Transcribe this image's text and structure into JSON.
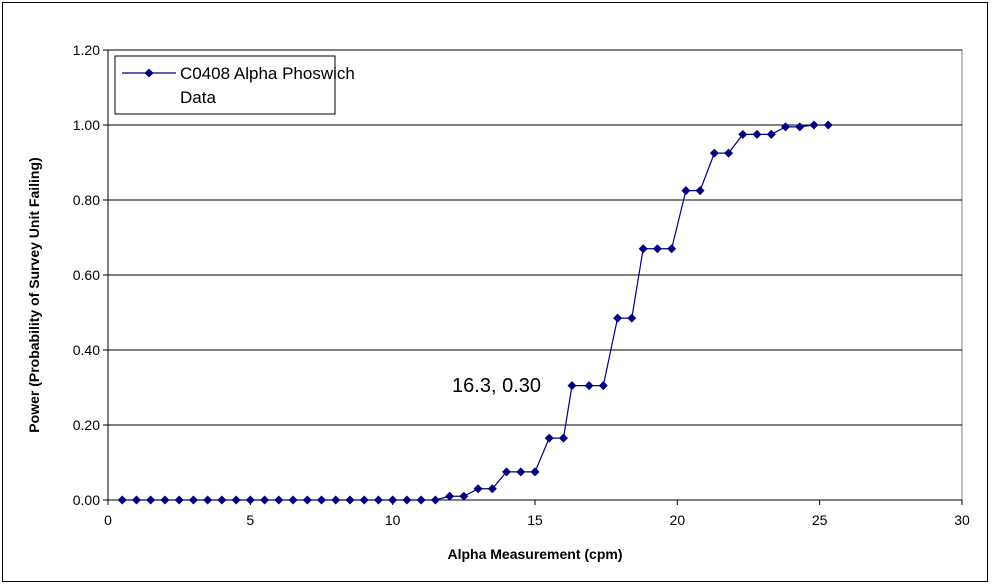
{
  "chart_data": {
    "type": "line",
    "xlabel": "Alpha Measurement (cpm)",
    "ylabel": "Power (Probability of Survey Unit Failing)",
    "xlim": [
      0,
      30
    ],
    "ylim": [
      0,
      1.2
    ],
    "x_ticks": [
      "0",
      "5",
      "10",
      "15",
      "20",
      "25",
      "30"
    ],
    "y_ticks": [
      "0.00",
      "0.20",
      "0.40",
      "0.60",
      "0.80",
      "1.00",
      "1.20"
    ],
    "grid": "horizontal major gridlines",
    "legend_position": "top-left",
    "annotation": {
      "text": "16.3, 0.30"
    },
    "colors": {
      "series": "#000080",
      "grid": "#000000"
    },
    "series": [
      {
        "name": "C0408 Alpha Phoswich Data",
        "marker": "diamond",
        "x": [
          0.5,
          1.0,
          1.5,
          2.0,
          2.5,
          3.0,
          3.5,
          4.0,
          4.5,
          5.0,
          5.5,
          6.0,
          6.5,
          7.0,
          7.5,
          8.0,
          8.5,
          9.0,
          9.5,
          10.0,
          10.5,
          11.0,
          11.5,
          12.0,
          12.5,
          13.0,
          13.5,
          14.0,
          14.5,
          15.0,
          15.5,
          16.0,
          16.3,
          16.9,
          17.4,
          17.9,
          18.4,
          18.8,
          19.3,
          19.8,
          20.3,
          20.8,
          21.3,
          21.8,
          22.3,
          22.8,
          23.3,
          23.8,
          24.3,
          24.8,
          25.3
        ],
        "y": [
          0,
          0,
          0,
          0,
          0,
          0,
          0,
          0,
          0,
          0,
          0,
          0,
          0,
          0,
          0,
          0,
          0,
          0,
          0,
          0,
          0,
          0,
          0,
          0.01,
          0.01,
          0.03,
          0.03,
          0.075,
          0.075,
          0.075,
          0.165,
          0.165,
          0.305,
          0.305,
          0.305,
          0.485,
          0.485,
          0.67,
          0.67,
          0.67,
          0.825,
          0.825,
          0.925,
          0.925,
          0.975,
          0.975,
          0.975,
          0.995,
          0.995,
          1.0,
          1.0
        ]
      }
    ]
  }
}
